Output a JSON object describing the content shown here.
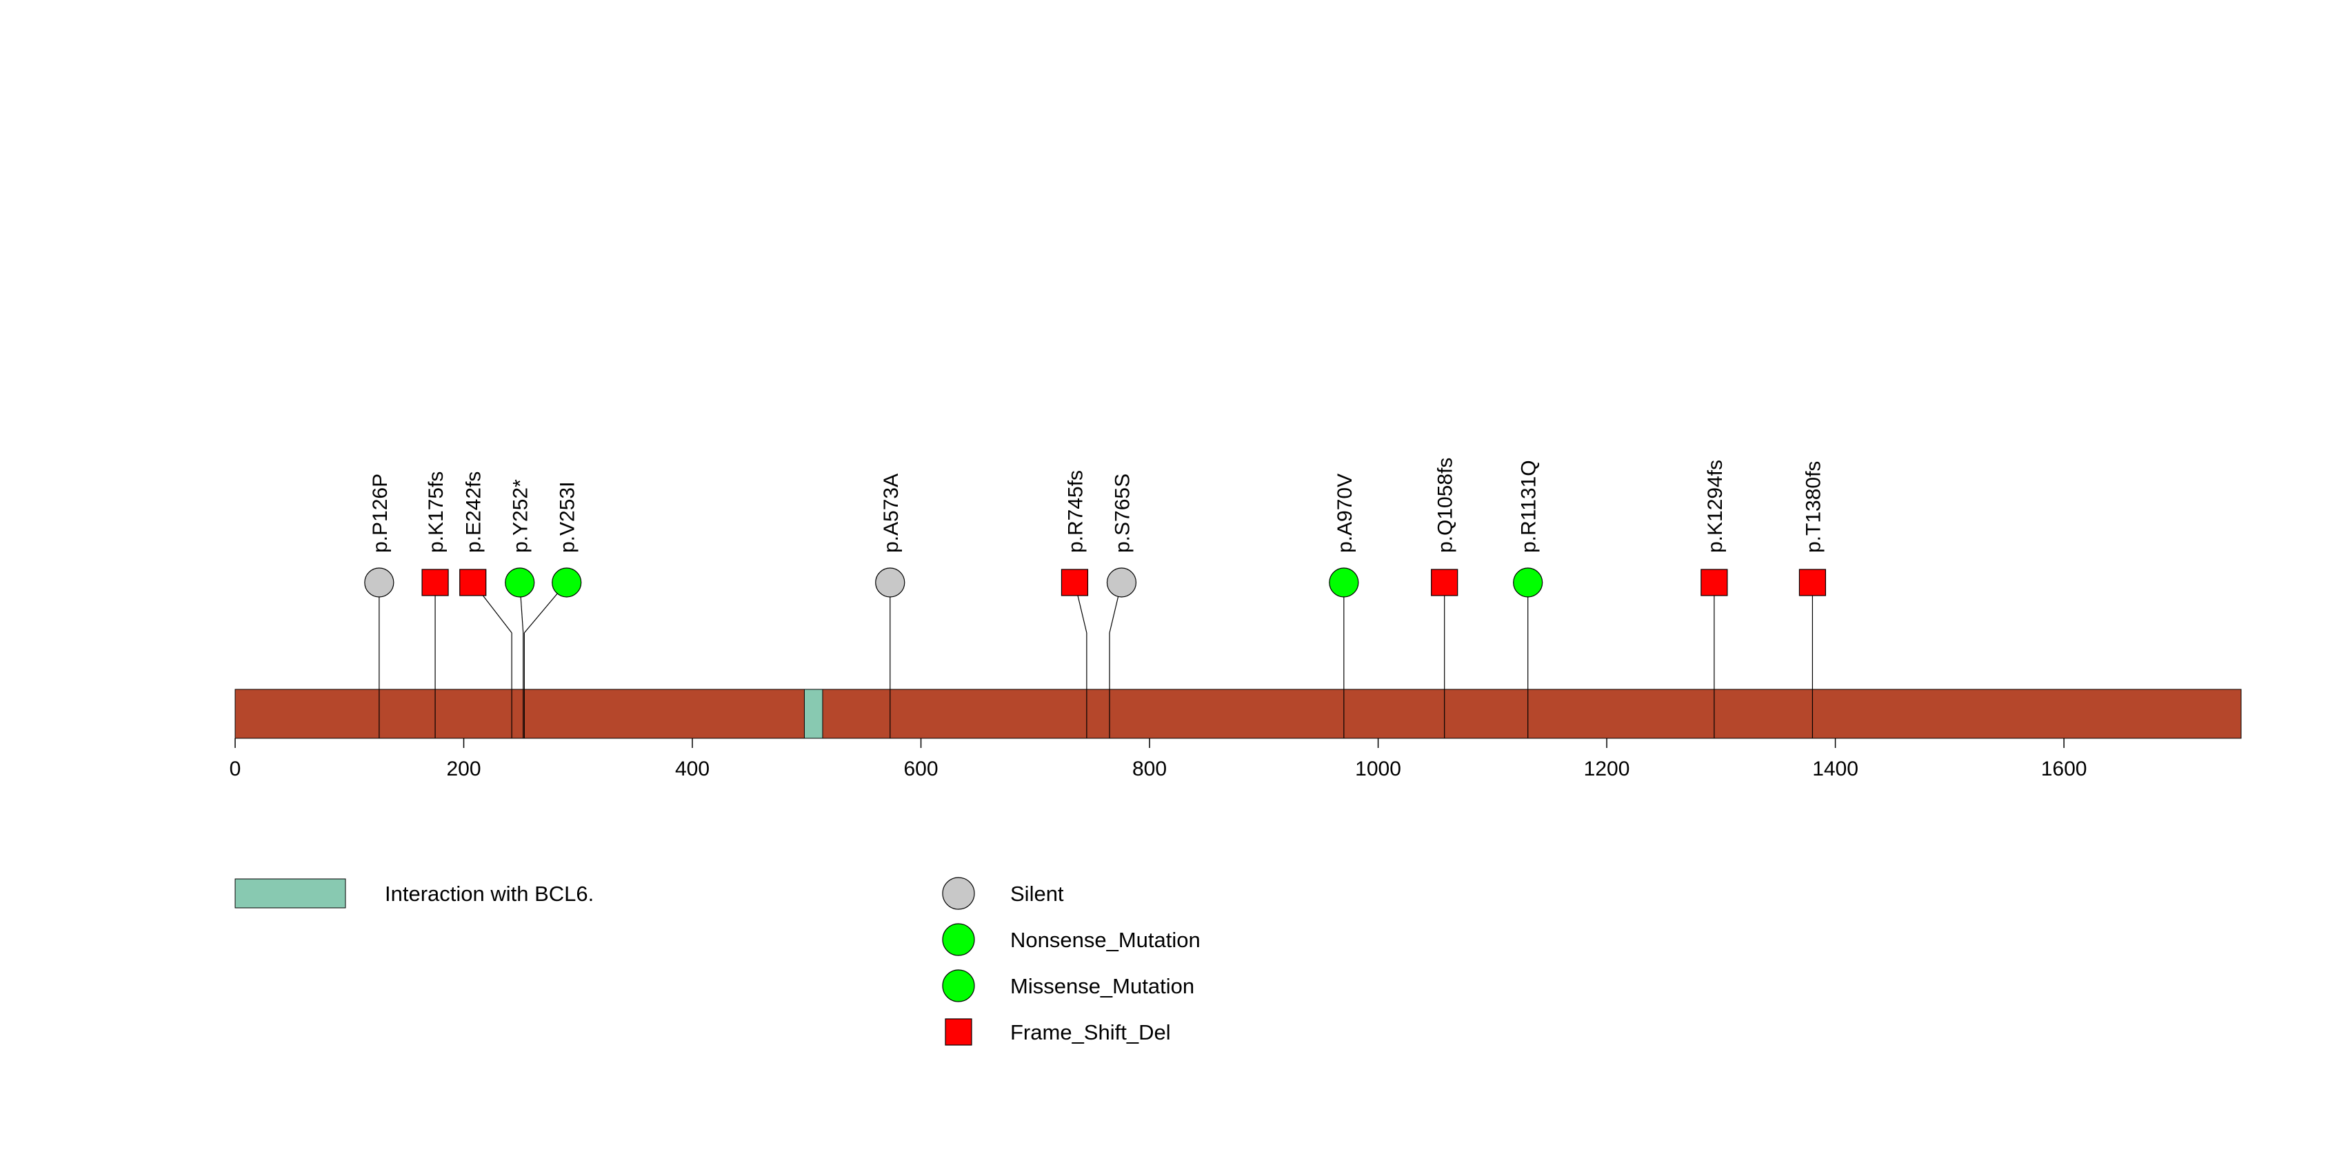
{
  "chart_data": {
    "type": "lollipop",
    "protein_length": 1755,
    "axis": {
      "min": 0,
      "max": 1755,
      "ticks": [
        0,
        200,
        400,
        600,
        800,
        1000,
        1200,
        1400,
        1600
      ]
    },
    "domains": [
      {
        "label": "Interaction with BCL6.",
        "start": 498,
        "end": 514,
        "color": "#88c9b1"
      }
    ],
    "backbone_color": "#b5472b",
    "mutations": [
      {
        "label": "p.P126P",
        "position": 126,
        "type": "Silent"
      },
      {
        "label": "p.K175fs",
        "position": 175,
        "type": "Frame_Shift_Del"
      },
      {
        "label": "p.E242fs",
        "position": 242,
        "type": "Frame_Shift_Del"
      },
      {
        "label": "p.Y252*",
        "position": 252,
        "type": "Nonsense_Mutation"
      },
      {
        "label": "p.V253I",
        "position": 253,
        "type": "Missense_Mutation"
      },
      {
        "label": "p.A573A",
        "position": 573,
        "type": "Silent"
      },
      {
        "label": "p.R745fs",
        "position": 745,
        "type": "Frame_Shift_Del"
      },
      {
        "label": "p.S765S",
        "position": 765,
        "type": "Silent"
      },
      {
        "label": "p.A970V",
        "position": 970,
        "type": "Missense_Mutation"
      },
      {
        "label": "p.Q1058fs",
        "position": 1058,
        "type": "Frame_Shift_Del"
      },
      {
        "label": "p.R1131Q",
        "position": 1131,
        "type": "Missense_Mutation"
      },
      {
        "label": "p.K1294fs",
        "position": 1294,
        "type": "Frame_Shift_Del"
      },
      {
        "label": "p.T1380fs",
        "position": 1380,
        "type": "Frame_Shift_Del"
      }
    ],
    "legend": {
      "domains": [
        {
          "label": "Interaction with BCL6.",
          "color": "#88c9b1"
        }
      ],
      "mutation_types": [
        {
          "label": "Silent",
          "shape": "circle",
          "color": "#c8c8c8"
        },
        {
          "label": "Nonsense_Mutation",
          "shape": "circle",
          "color": "#00ff00"
        },
        {
          "label": "Missense_Mutation",
          "shape": "circle",
          "color": "#00ff00"
        },
        {
          "label": "Frame_Shift_Del",
          "shape": "square",
          "color": "#ff0000"
        }
      ]
    }
  }
}
